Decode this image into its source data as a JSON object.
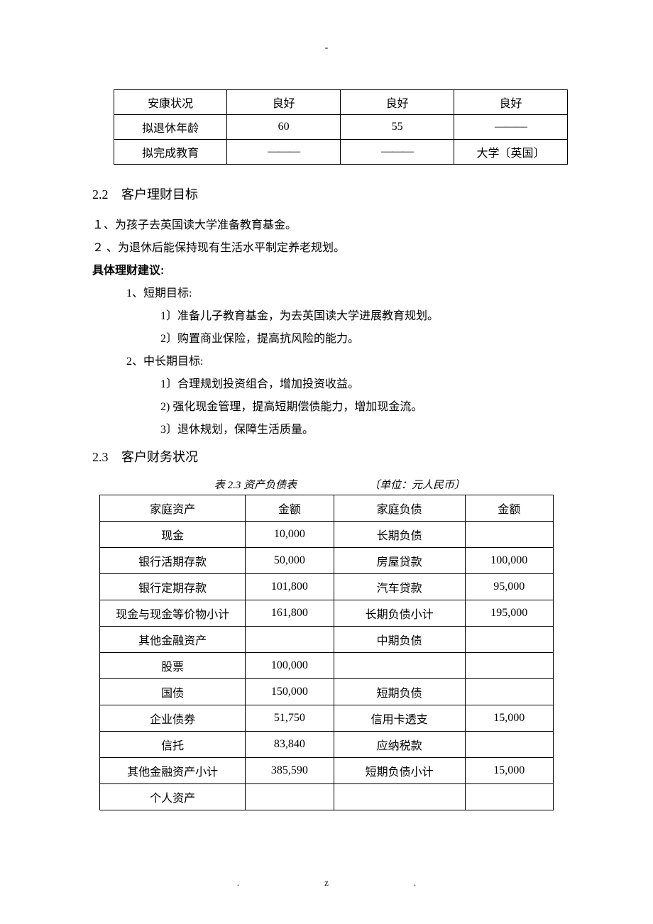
{
  "topDash": "-",
  "table1": {
    "rows": [
      [
        "安康状况",
        "良好",
        "良好",
        "良好"
      ],
      [
        "拟退休年龄",
        "60",
        "55",
        "———"
      ],
      [
        "拟完成教育",
        "———",
        "———",
        "大学〔英国〕"
      ]
    ]
  },
  "sec22": {
    "num": "2.2",
    "title": "客户理财目标",
    "lines": [
      "１、为孩子去英国读大学准备教育基金。",
      "２ 、为退休后能保持现有生活水平制定养老规划。"
    ],
    "adviceLabel": "具体理财建议:",
    "advice": [
      {
        "head": "1、短期目标:",
        "items": [
          "1〕准备儿子教育基金，为去英国读大学进展教育规划。",
          "2〕购置商业保险，提高抗风险的能力。"
        ]
      },
      {
        "head": "2、中长期目标:",
        "items": [
          "1〕合理规划投资组合，增加投资收益。",
          "2) 强化现金管理，提高短期偿债能力，增加现金流。",
          "3〕退休规划，保障生活质量。"
        ]
      }
    ]
  },
  "sec23": {
    "num": "2.3",
    "title": "客户财务状况",
    "caption": "表 2.3 资产负债表",
    "unit": "〔单位：元人民币〕",
    "rows": [
      [
        "家庭资产",
        "金额",
        "家庭负债",
        "金额"
      ],
      [
        "现金",
        "10,000",
        "长期负债",
        ""
      ],
      [
        "银行活期存款",
        "50,000",
        "房屋贷款",
        "100,000"
      ],
      [
        "银行定期存款",
        "101,800",
        "汽车贷款",
        "95,000"
      ],
      [
        "现金与现金等价物小计",
        "161,800",
        "长期负债小计",
        "195,000"
      ],
      [
        "其他金融资产",
        "",
        "中期负债",
        ""
      ],
      [
        "股票",
        "100,000",
        "",
        ""
      ],
      [
        "国债",
        "150,000",
        "短期负债",
        ""
      ],
      [
        "企业债券",
        "51,750",
        "信用卡透支",
        "15,000"
      ],
      [
        "信托",
        "83,840",
        "应纳税款",
        ""
      ],
      [
        "其他金融资产小计",
        "385,590",
        "短期负债小计",
        "15,000"
      ],
      [
        "个人资产",
        "",
        "",
        ""
      ]
    ]
  },
  "footer": {
    "left": ".",
    "right": "z."
  }
}
